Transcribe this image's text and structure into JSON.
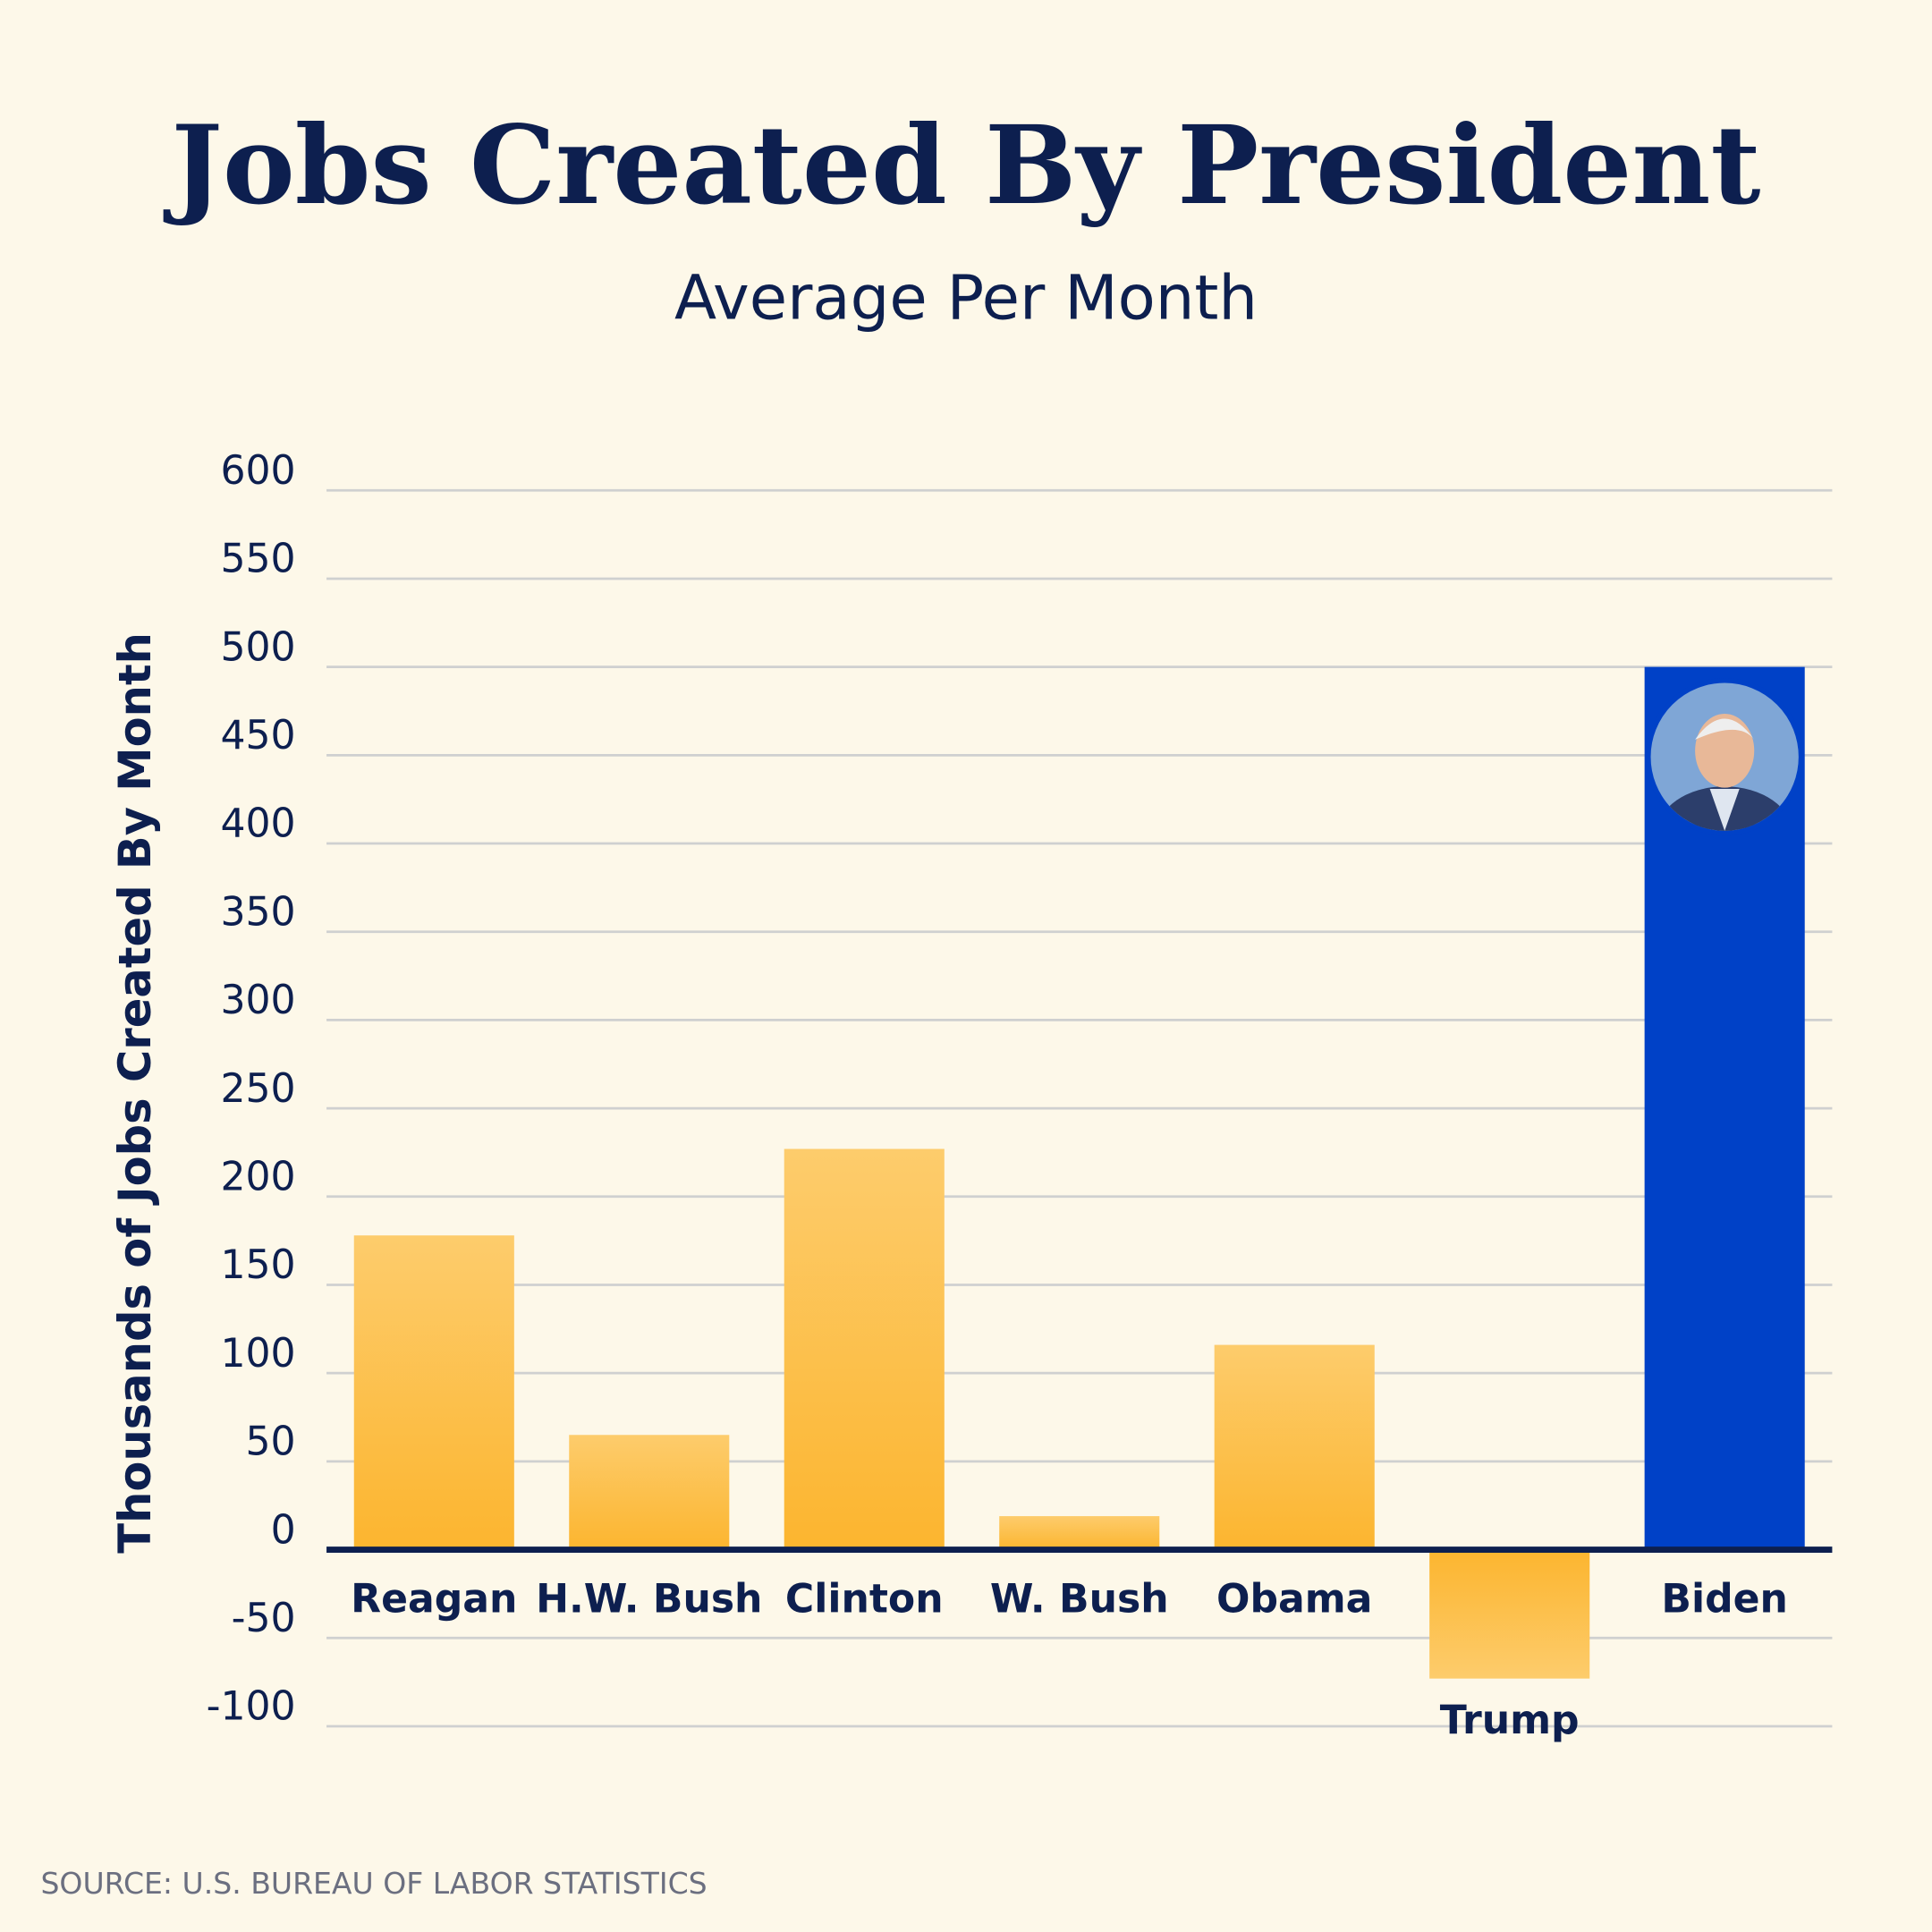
{
  "chart_data": {
    "type": "bar",
    "title": "Jobs Created By President",
    "subtitle": "Average Per Month",
    "y_label": "Thousands of Jobs Created By Month",
    "categories": [
      "Reagan",
      "H.W. Bush",
      "Clinton",
      "W. Bush",
      "Obama",
      "Trump",
      "Biden"
    ],
    "values": [
      178,
      65,
      227,
      19,
      116,
      -73,
      500
    ],
    "colors": [
      "#fdbf38",
      "#fdbf38",
      "#fdbf38",
      "#fdbf38",
      "#fdbf38",
      "#fdbf38",
      "#0041c7"
    ],
    "ylim": [
      -100,
      600
    ],
    "yticks": [
      -100,
      -50,
      0,
      50,
      100,
      150,
      200,
      250,
      300,
      350,
      400,
      450,
      500,
      550,
      600
    ],
    "grid": true,
    "source": "SOURCE: U.S. BUREAU OF LABOR STATISTICS"
  }
}
